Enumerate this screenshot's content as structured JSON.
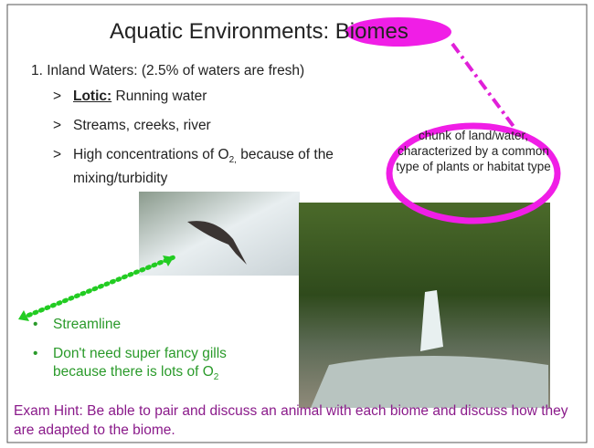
{
  "slide": {
    "title": {
      "plain": "Aquatic Environments: ",
      "highlight": "Biomes"
    },
    "heading": "1. Inland Waters: (2.5% of waters are fresh)",
    "bullets": [
      {
        "marker": ">",
        "parts": [
          "Lotic:",
          " Running water"
        ]
      },
      {
        "marker": ">",
        "parts": [
          "Streams, creeks, river"
        ]
      },
      {
        "marker": ">",
        "parts": [
          "High concentrations of O",
          "2,",
          " because of the mixing/turbidity"
        ]
      }
    ],
    "annotation": "chunk of land/water, characterized by a common type of plants or habitat type",
    "green_bullets": [
      {
        "marker": "•",
        "parts": [
          "Streamline"
        ]
      },
      {
        "marker": "•",
        "parts": [
          "Don't need super fancy gills because there is lots of O",
          "2"
        ]
      }
    ],
    "exam_hint": "Exam Hint: Be able to pair and discuss an animal with each biome and discuss how they are adapted to the biome."
  }
}
